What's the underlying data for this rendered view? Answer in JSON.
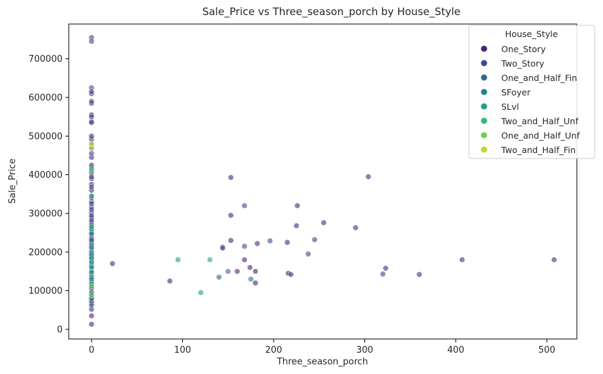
{
  "chart_data": {
    "type": "scatter",
    "title": "Sale_Price vs Three_season_porch by House_Style",
    "xlabel": "Three_season_porch",
    "ylabel": "Sale_Price",
    "xlim": [
      -25,
      533
    ],
    "ylim": [
      -25000,
      790000
    ],
    "xticks": [
      0,
      100,
      200,
      300,
      400,
      500
    ],
    "yticks": [
      0,
      100000,
      200000,
      300000,
      400000,
      500000,
      600000,
      700000
    ],
    "legend": {
      "title": "House_Style",
      "placement": "top-right"
    },
    "point_alpha": 0.6,
    "series": [
      {
        "name": "One_Story",
        "color": "#482878",
        "points": [
          [
            0,
            13000
          ],
          [
            0,
            35000
          ],
          [
            0,
            52000
          ],
          [
            0,
            67000
          ],
          [
            0,
            80000
          ],
          [
            0,
            92000
          ],
          [
            0,
            105000
          ],
          [
            0,
            118000
          ],
          [
            0,
            128000
          ],
          [
            0,
            137000
          ],
          [
            0,
            146000
          ],
          [
            0,
            155000
          ],
          [
            0,
            163000
          ],
          [
            0,
            172000
          ],
          [
            0,
            180000
          ],
          [
            0,
            189000
          ],
          [
            0,
            198000
          ],
          [
            0,
            207000
          ],
          [
            0,
            216000
          ],
          [
            0,
            228000
          ],
          [
            0,
            240000
          ],
          [
            0,
            252000
          ],
          [
            0,
            264000
          ],
          [
            0,
            276000
          ],
          [
            0,
            289000
          ],
          [
            0,
            302000
          ],
          [
            0,
            316000
          ],
          [
            0,
            330000
          ],
          [
            0,
            345000
          ],
          [
            0,
            360000
          ],
          [
            0,
            375000
          ],
          [
            0,
            390000
          ],
          [
            0,
            405000
          ],
          [
            0,
            425000
          ],
          [
            0,
            445000
          ],
          [
            0,
            468000
          ],
          [
            0,
            492000
          ],
          [
            0,
            500000
          ],
          [
            0,
            538000
          ],
          [
            0,
            555000
          ],
          [
            0,
            585000
          ],
          [
            0,
            610000
          ],
          [
            23,
            170000
          ],
          [
            86,
            125000
          ],
          [
            153,
            393000
          ],
          [
            153,
            295000
          ],
          [
            153,
            230000
          ],
          [
            160,
            150000
          ],
          [
            168,
            180000
          ],
          [
            174,
            160000
          ],
          [
            180,
            150000
          ],
          [
            180,
            120000
          ],
          [
            182,
            222000
          ],
          [
            215,
            225000
          ],
          [
            216,
            145000
          ],
          [
            219,
            142000
          ],
          [
            225,
            268000
          ],
          [
            226,
            320000
          ],
          [
            255,
            276000
          ],
          [
            290,
            263000
          ],
          [
            304,
            395000
          ],
          [
            323,
            158000
          ],
          [
            360,
            142000
          ],
          [
            407,
            180000
          ],
          [
            508,
            180000
          ]
        ]
      },
      {
        "name": "Two_Story",
        "color": "#3e4989",
        "points": [
          [
            0,
            755000
          ],
          [
            0,
            745000
          ],
          [
            0,
            625000
          ],
          [
            0,
            615000
          ],
          [
            0,
            590000
          ],
          [
            0,
            550000
          ],
          [
            0,
            535000
          ],
          [
            0,
            480000
          ],
          [
            0,
            455000
          ],
          [
            0,
            420000
          ],
          [
            0,
            395000
          ],
          [
            0,
            368000
          ],
          [
            0,
            340000
          ],
          [
            0,
            325000
          ],
          [
            0,
            310000
          ],
          [
            0,
            294000
          ],
          [
            0,
            282000
          ],
          [
            0,
            270000
          ],
          [
            0,
            258000
          ],
          [
            0,
            246000
          ],
          [
            0,
            234000
          ],
          [
            0,
            222000
          ],
          [
            0,
            210000
          ],
          [
            0,
            194000
          ],
          [
            0,
            184000
          ],
          [
            0,
            168000
          ],
          [
            0,
            150000
          ],
          [
            0,
            132000
          ],
          [
            0,
            112000
          ],
          [
            0,
            90000
          ],
          [
            0,
            73000
          ],
          [
            144,
            213000
          ],
          [
            144,
            210000
          ],
          [
            168,
            320000
          ],
          [
            168,
            215000
          ],
          [
            196,
            229000
          ],
          [
            238,
            195000
          ],
          [
            245,
            232000
          ],
          [
            320,
            143000
          ]
        ]
      },
      {
        "name": "One_and_Half_Fin",
        "color": "#31688e",
        "points": [
          [
            0,
            260000
          ],
          [
            0,
            230000
          ],
          [
            0,
            200000
          ],
          [
            0,
            160000
          ],
          [
            0,
            140000
          ],
          [
            0,
            125000
          ],
          [
            0,
            108000
          ],
          [
            0,
            95000
          ],
          [
            0,
            80000
          ],
          [
            0,
            62000
          ],
          [
            140,
            135000
          ],
          [
            150,
            150000
          ],
          [
            175,
            130000
          ]
        ]
      },
      {
        "name": "SFoyer",
        "color": "#26828e",
        "points": [
          [
            0,
            218000
          ],
          [
            0,
            185000
          ],
          [
            0,
            158000
          ],
          [
            0,
            135000
          ],
          [
            0,
            118000
          ]
        ]
      },
      {
        "name": "SLvl",
        "color": "#1f9e89",
        "points": [
          [
            0,
            410000
          ],
          [
            0,
            248000
          ],
          [
            0,
            212000
          ],
          [
            0,
            193000
          ],
          [
            0,
            175000
          ],
          [
            0,
            162000
          ],
          [
            0,
            148000
          ],
          [
            0,
            130000
          ],
          [
            95,
            180000
          ],
          [
            120,
            95000
          ],
          [
            130,
            180000
          ]
        ]
      },
      {
        "name": "Two_and_Half_Unf",
        "color": "#35b779",
        "points": [
          [
            0,
            415000
          ],
          [
            0,
            345000
          ],
          [
            0,
            265000
          ]
        ]
      },
      {
        "name": "One_and_Half_Unf",
        "color": "#6ece58",
        "points": [
          [
            0,
            112000
          ],
          [
            0,
            88000
          ]
        ]
      },
      {
        "name": "Two_and_Half_Fin",
        "color": "#b5de2b",
        "points": [
          [
            0,
            478000
          ],
          [
            0,
            470000
          ]
        ]
      }
    ]
  }
}
